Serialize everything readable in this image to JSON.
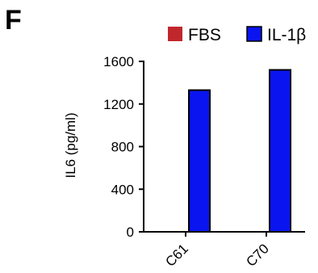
{
  "panel_label": "F",
  "colors": {
    "fbs": "#c0272d",
    "il1b": "#0a14f0"
  },
  "chart_data": {
    "type": "bar",
    "categories": [
      "C61",
      "C70"
    ],
    "series": [
      {
        "name": "FBS",
        "values": [
          0,
          0
        ]
      },
      {
        "name": "IL-1β",
        "values": [
          1330,
          1520
        ]
      }
    ],
    "title": "",
    "xlabel": "",
    "ylabel": "IL6 (pg/ml)",
    "ylim": [
      0,
      1600
    ],
    "yticks": [
      0,
      400,
      800,
      1200,
      1600
    ],
    "grid": false,
    "legend_position": "top-right"
  }
}
